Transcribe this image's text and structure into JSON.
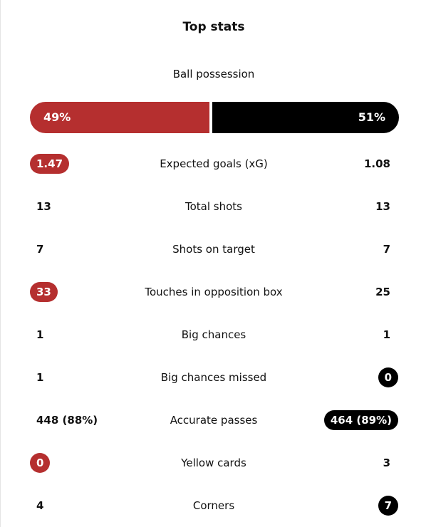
{
  "header": {
    "title": "Top stats"
  },
  "possession": {
    "label": "Ball possession",
    "home": "49%",
    "away": "51%",
    "home_color": "#b52f2f",
    "away_color": "#000000"
  },
  "stats": {
    "highlight_colors": {
      "home": "#b52f2f",
      "away": "#000000"
    },
    "rows": [
      {
        "label": "Expected goals (xG)",
        "home": "1.47",
        "away": "1.08",
        "highlight": "home"
      },
      {
        "label": "Total shots",
        "home": "13",
        "away": "13",
        "highlight": null
      },
      {
        "label": "Shots on target",
        "home": "7",
        "away": "7",
        "highlight": null
      },
      {
        "label": "Touches in opposition box",
        "home": "33",
        "away": "25",
        "highlight": "home"
      },
      {
        "label": "Big chances",
        "home": "1",
        "away": "1",
        "highlight": null
      },
      {
        "label": "Big chances missed",
        "home": "1",
        "away": "0",
        "highlight": "away"
      },
      {
        "label": "Accurate passes",
        "home": "448 (88%)",
        "away": "464 (89%)",
        "highlight": "away"
      },
      {
        "label": "Yellow cards",
        "home": "0",
        "away": "3",
        "highlight": "home"
      },
      {
        "label": "Corners",
        "home": "4",
        "away": "7",
        "highlight": "away"
      }
    ]
  }
}
